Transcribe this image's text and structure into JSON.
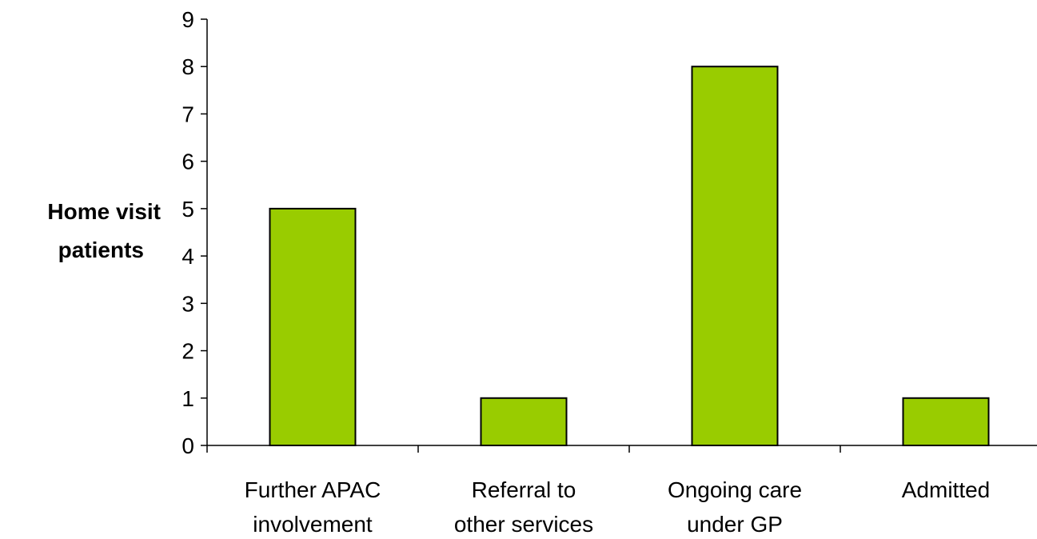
{
  "chart_data": {
    "type": "bar",
    "categories": [
      [
        "Further APAC",
        "involvement"
      ],
      [
        "Referral to",
        "other services"
      ],
      [
        "Ongoing care",
        "under GP"
      ],
      [
        "Admitted"
      ]
    ],
    "values": [
      5,
      1,
      8,
      1
    ],
    "title": "",
    "xlabel": "",
    "ylabel": [
      "Home visit",
      "patients"
    ],
    "ylim": [
      0,
      9
    ],
    "yticks": [
      0,
      1,
      2,
      3,
      4,
      5,
      6,
      7,
      8,
      9
    ],
    "grid": false,
    "bar_color": "#99CC00",
    "bar_border_color": "#000000"
  }
}
